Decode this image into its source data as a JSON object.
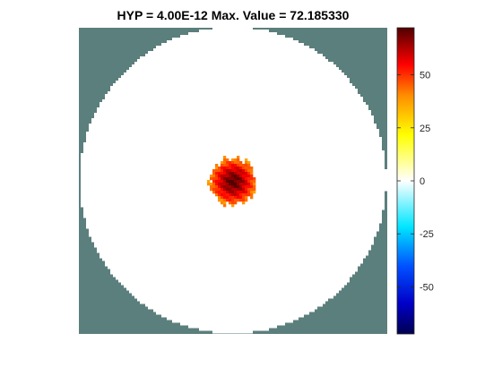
{
  "chart_data": {
    "type": "heatmap",
    "title": "HYP = 4.00E-12  Max. Value = 72.185330",
    "xlabel": "",
    "ylabel": "",
    "image": {
      "background_color": "#5b7f7d",
      "disk_fill_value": 0,
      "disk_description": "circular field of near-zero values",
      "hotspot_peak_value": 72.18533,
      "hotspot_edge_value": 40,
      "hotspot_location": "center"
    },
    "colorbar": {
      "clim": [
        -72.18533,
        72.18533
      ],
      "ticks": [
        {
          "value": 50,
          "label": "50"
        },
        {
          "value": 25,
          "label": "25"
        },
        {
          "value": 0,
          "label": "0"
        },
        {
          "value": -25,
          "label": "-25"
        },
        {
          "value": -50,
          "label": "-50"
        }
      ],
      "colormap": [
        {
          "t": 0.0,
          "color": "#000050"
        },
        {
          "t": 0.1,
          "color": "#0000c8"
        },
        {
          "t": 0.22,
          "color": "#0050ff"
        },
        {
          "t": 0.35,
          "color": "#00e6ff"
        },
        {
          "t": 0.5,
          "color": "#ffffff"
        },
        {
          "t": 0.65,
          "color": "#ffff00"
        },
        {
          "t": 0.78,
          "color": "#ff8c00"
        },
        {
          "t": 0.88,
          "color": "#ff0000"
        },
        {
          "t": 1.0,
          "color": "#500000"
        }
      ]
    }
  }
}
